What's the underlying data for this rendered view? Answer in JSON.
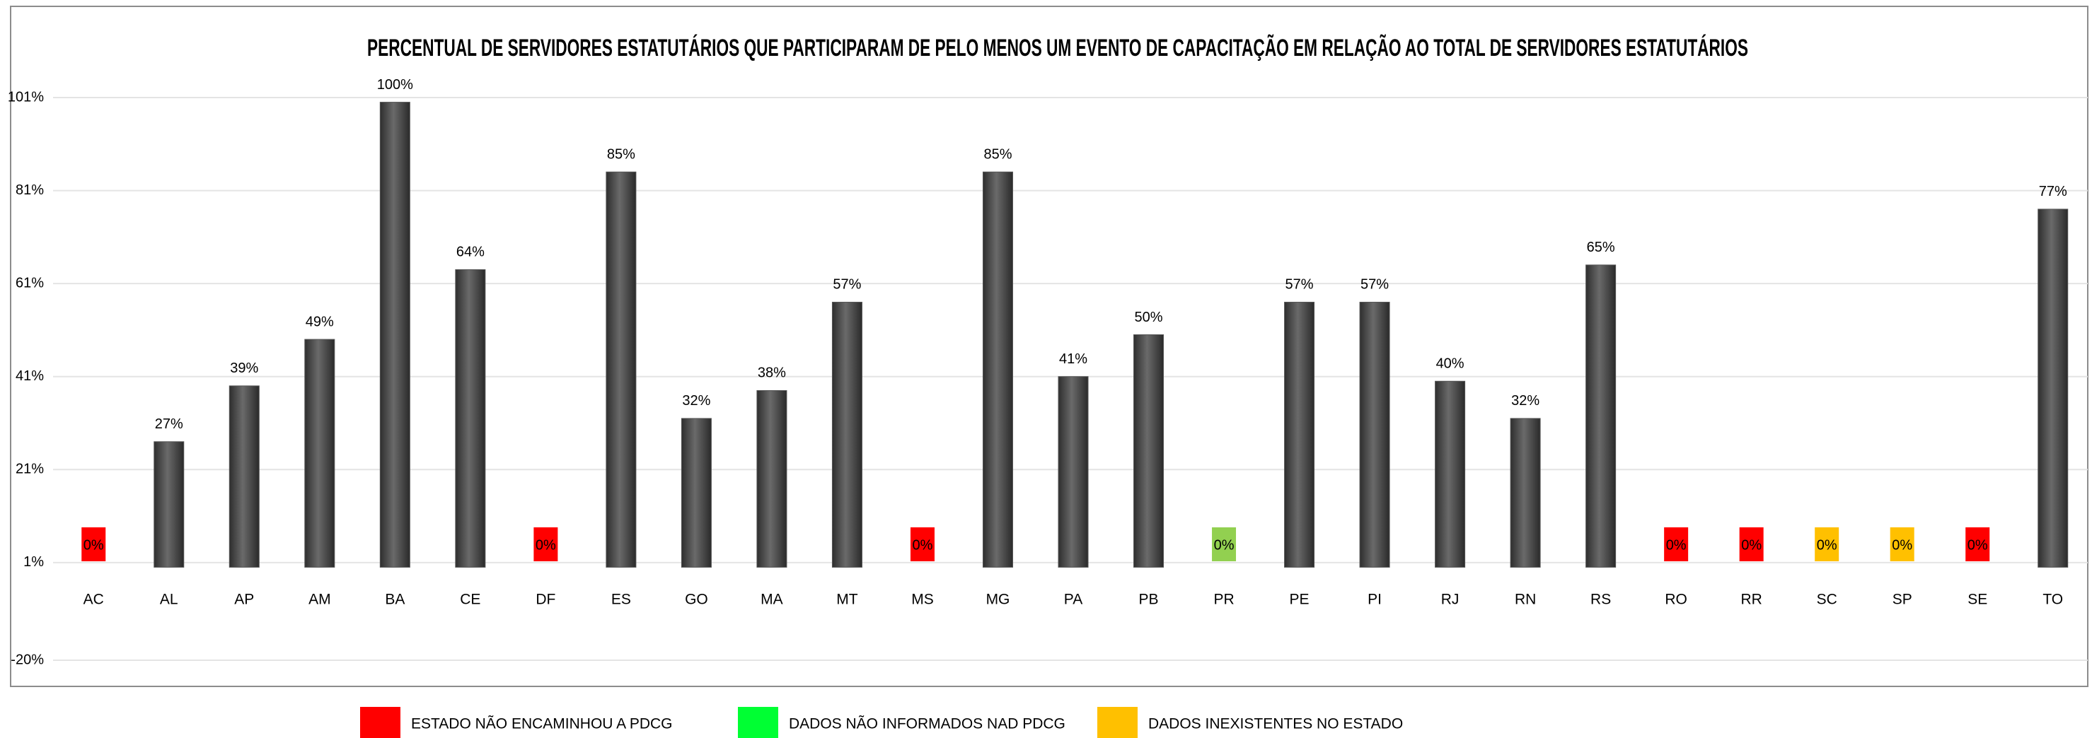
{
  "chart_data": {
    "type": "bar",
    "title": "PERCENTUAL DE SERVIDORES ESTATUTÁRIOS QUE PARTICIPARAM DE PELO MENOS UM EVENTO DE CAPACITAÇÃO EM RELAÇÃO AO TOTAL DE SERVIDORES ESTATUTÁRIOS",
    "categories": [
      "AC",
      "AL",
      "AP",
      "AM",
      "BA",
      "CE",
      "DF",
      "ES",
      "GO",
      "MA",
      "MT",
      "MS",
      "MG",
      "PA",
      "PB",
      "PR",
      "PE",
      "PI",
      "RJ",
      "RN",
      "RS",
      "RO",
      "RR",
      "SC",
      "SP",
      "SE",
      "TO"
    ],
    "values": [
      0,
      27,
      39,
      49,
      100,
      64,
      0,
      85,
      32,
      38,
      57,
      0,
      85,
      41,
      50,
      0,
      57,
      57,
      40,
      32,
      65,
      0,
      0,
      0,
      0,
      0,
      77
    ],
    "value_labels": [
      "0%",
      "27%",
      "39%",
      "49%",
      "100%",
      "64%",
      "0%",
      "85%",
      "32%",
      "38%",
      "57%",
      "0%",
      "85%",
      "41%",
      "50%",
      "0%",
      "57%",
      "57%",
      "40%",
      "32%",
      "65%",
      "0%",
      "0%",
      "0%",
      "0%",
      "0%",
      "77%"
    ],
    "colors": [
      "#ff0000",
      "#555555",
      "#555555",
      "#555555",
      "#555555",
      "#555555",
      "#ff0000",
      "#555555",
      "#555555",
      "#555555",
      "#555555",
      "#ff0000",
      "#555555",
      "#555555",
      "#555555",
      "#92d050",
      "#555555",
      "#555555",
      "#555555",
      "#555555",
      "#555555",
      "#ff0000",
      "#ff0000",
      "#ffc000",
      "#ffc000",
      "#ff0000",
      "#555555"
    ],
    "ylim": [
      -20,
      101
    ],
    "yticks": [
      {
        "value": 101,
        "label": "101%"
      },
      {
        "value": 81,
        "label": "81%"
      },
      {
        "value": 61,
        "label": "61%"
      },
      {
        "value": 41,
        "label": "41%"
      },
      {
        "value": 21,
        "label": "21%"
      },
      {
        "value": 1,
        "label": "1%"
      },
      {
        "value": -20,
        "label": "-20%"
      }
    ],
    "grid": true,
    "legend": [
      {
        "name": "ESTADO NÃO ENCAMINHOU A PDCG",
        "color": "#ff0000"
      },
      {
        "name": "DADOS NÃO INFORMADOS NAD PDCG",
        "color": "#00ff33"
      },
      {
        "name": "DADOS INEXISTENTES NO ESTADO",
        "color": "#ffc000"
      }
    ]
  }
}
